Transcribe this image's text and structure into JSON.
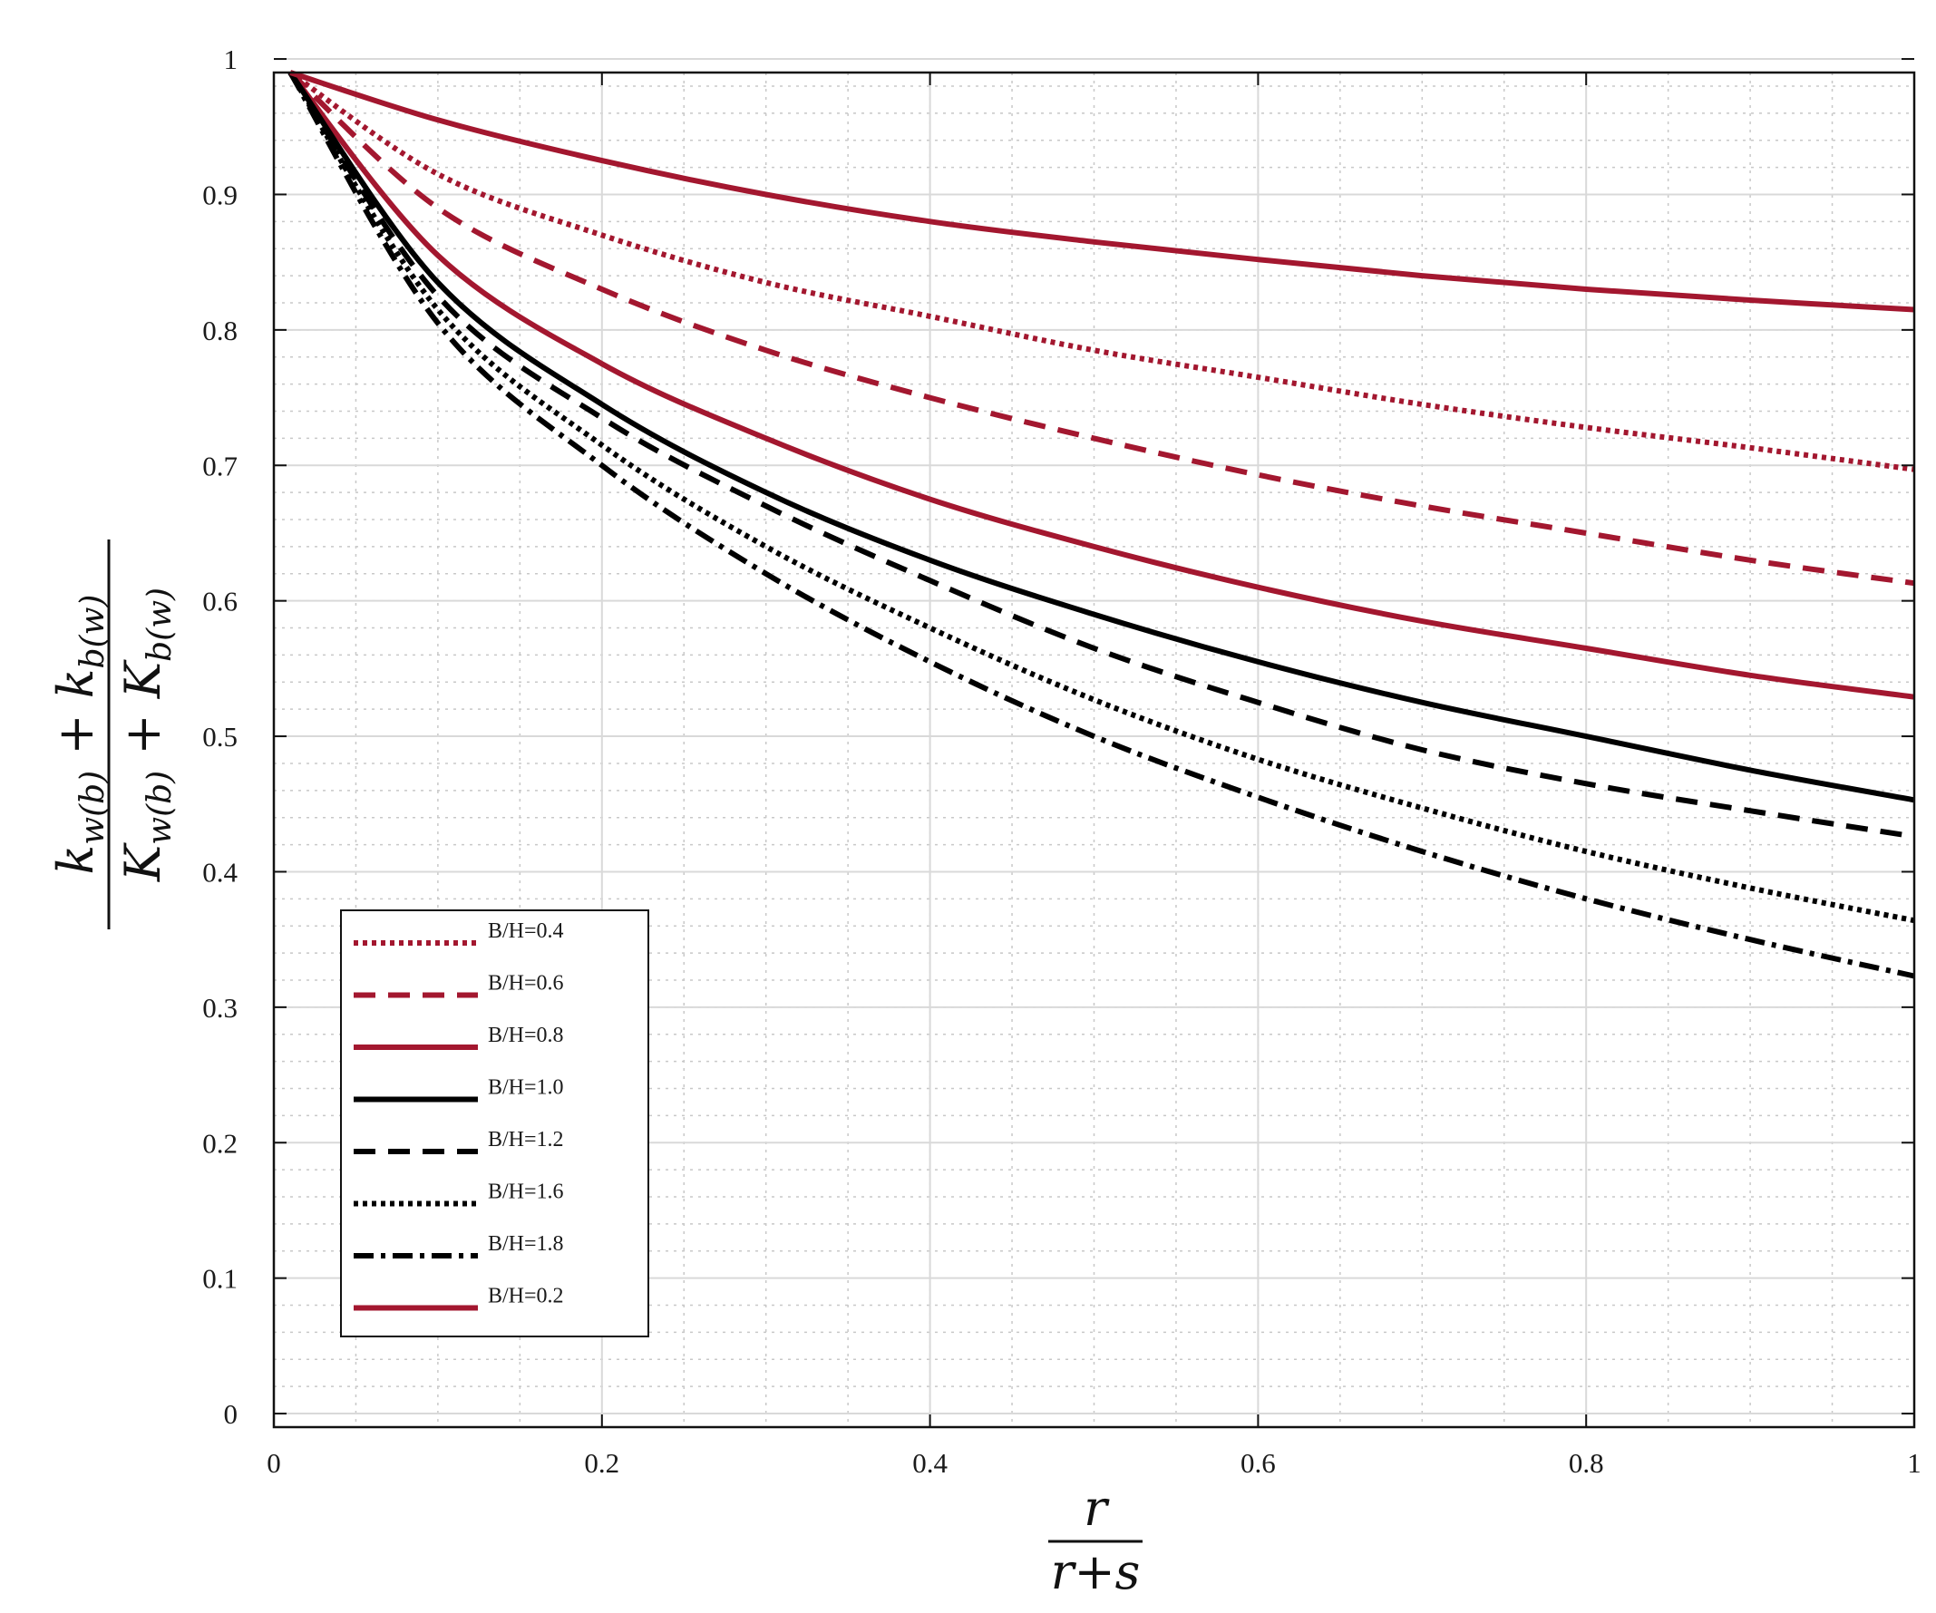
{
  "chart_data": {
    "type": "line",
    "title": "",
    "xlabel": {
      "numerator": "r",
      "denominator": "r+s"
    },
    "ylabel": {
      "numerator": "k_w(b)+k_b(w)",
      "denominator": "K_w(b)+K_b(w)"
    },
    "xlim": [
      0,
      1
    ],
    "ylim": [
      -0.01,
      0.99
    ],
    "xticks": [
      "0",
      "0.2",
      "0.4",
      "0.6",
      "0.8",
      "1"
    ],
    "yticks": [
      "0",
      "0.1",
      "0.2",
      "0.3",
      "0.4",
      "0.5",
      "0.6",
      "0.7",
      "0.8",
      "0.9",
      "1"
    ],
    "grid": true,
    "minor_grid": true,
    "legend_position": "lower-left",
    "colors": {
      "red": "#a3172f",
      "black": "#000000"
    },
    "x": [
      0.01,
      0.1,
      0.2,
      0.3,
      0.4,
      0.5,
      0.6,
      0.7,
      0.8,
      0.9,
      1.0
    ],
    "series": [
      {
        "name": "B/H=0.4",
        "color": "red",
        "style": "dotted",
        "values": [
          0.99,
          0.915,
          0.87,
          0.835,
          0.81,
          0.785,
          0.765,
          0.745,
          0.728,
          0.713,
          0.697
        ]
      },
      {
        "name": "B/H=0.6",
        "color": "red",
        "style": "dashed",
        "values": [
          0.99,
          0.89,
          0.83,
          0.785,
          0.75,
          0.72,
          0.693,
          0.67,
          0.65,
          0.63,
          0.613
        ]
      },
      {
        "name": "B/H=0.8",
        "color": "red",
        "style": "solid",
        "values": [
          0.99,
          0.855,
          0.775,
          0.72,
          0.675,
          0.64,
          0.61,
          0.585,
          0.565,
          0.545,
          0.529
        ]
      },
      {
        "name": "B/H=1.0",
        "color": "black",
        "style": "solid",
        "values": [
          0.99,
          0.835,
          0.745,
          0.68,
          0.63,
          0.59,
          0.555,
          0.525,
          0.5,
          0.475,
          0.453
        ]
      },
      {
        "name": "B/H=1.2",
        "color": "black",
        "style": "dashed",
        "values": [
          0.99,
          0.825,
          0.735,
          0.67,
          0.615,
          0.565,
          0.525,
          0.49,
          0.465,
          0.445,
          0.426
        ]
      },
      {
        "name": "B/H=1.6",
        "color": "black",
        "style": "dotted",
        "values": [
          0.99,
          0.815,
          0.715,
          0.64,
          0.58,
          0.527,
          0.483,
          0.447,
          0.415,
          0.388,
          0.364
        ]
      },
      {
        "name": "B/H=1.8",
        "color": "black",
        "style": "dashdot",
        "values": [
          0.99,
          0.805,
          0.7,
          0.62,
          0.555,
          0.5,
          0.455,
          0.415,
          0.38,
          0.35,
          0.323
        ]
      },
      {
        "name": "B/H=0.2",
        "color": "red",
        "style": "solid",
        "values": [
          0.99,
          0.955,
          0.925,
          0.9,
          0.88,
          0.865,
          0.852,
          0.84,
          0.83,
          0.822,
          0.815
        ]
      }
    ]
  }
}
